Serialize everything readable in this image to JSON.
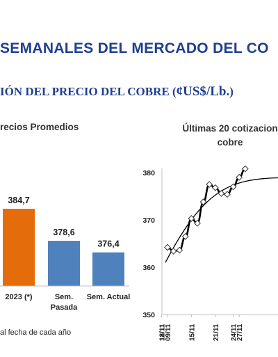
{
  "header": {
    "title": "SEMANALES DEL MERCADO DEL CO",
    "subtitle_main": "IÓN DEL PRECIO DEL COBRE (",
    "subtitle_unit": "¢US$/Lb.",
    "subtitle_close": ")"
  },
  "footnote": "al fecha de cada año",
  "chart_data": [
    {
      "type": "bar",
      "title": "recios Promedios",
      "categories": [
        {
          "line1": "2023 (*)",
          "line2": ""
        },
        {
          "line1": "Sem.",
          "line2": "Pasada"
        },
        {
          "line1": "Sem. Actual",
          "line2": ""
        }
      ],
      "values": [
        384.7,
        378.6,
        376.4
      ],
      "value_labels": [
        "384,7",
        "378,6",
        "376,4"
      ],
      "colors": [
        "#e46c0a",
        "#4f81bd",
        "#4f81bd"
      ],
      "ylim": [
        370,
        390
      ]
    },
    {
      "type": "line",
      "title_line1": "Últimas 20 cotizacion",
      "title_line2": "cobre",
      "x": [
        "09/11",
        "10/11",
        "13/11",
        "14/11",
        "15/11",
        "16/11",
        "17/11",
        "20/11",
        "21/11",
        "22/11",
        "23/11",
        "24/11",
        "27/11",
        "28/11"
      ],
      "x_tick_labels": [
        "09/11",
        "12/11",
        "15/11",
        "18/11",
        "21/11",
        "24/11",
        "27/11"
      ],
      "y": [
        364.2,
        363.4,
        363.6,
        366.5,
        370.3,
        369.3,
        373.8,
        377.5,
        376.8,
        375.6,
        375.4,
        377.0,
        379.0,
        380.8
      ],
      "trend_start": 361.0,
      "trend_end": 378.6,
      "ylim": [
        350,
        380
      ],
      "yticks": [
        350,
        360,
        370,
        380
      ],
      "colors": {
        "line": "#000000",
        "trend": "#000000",
        "axis": "#bfbfbf"
      }
    }
  ]
}
